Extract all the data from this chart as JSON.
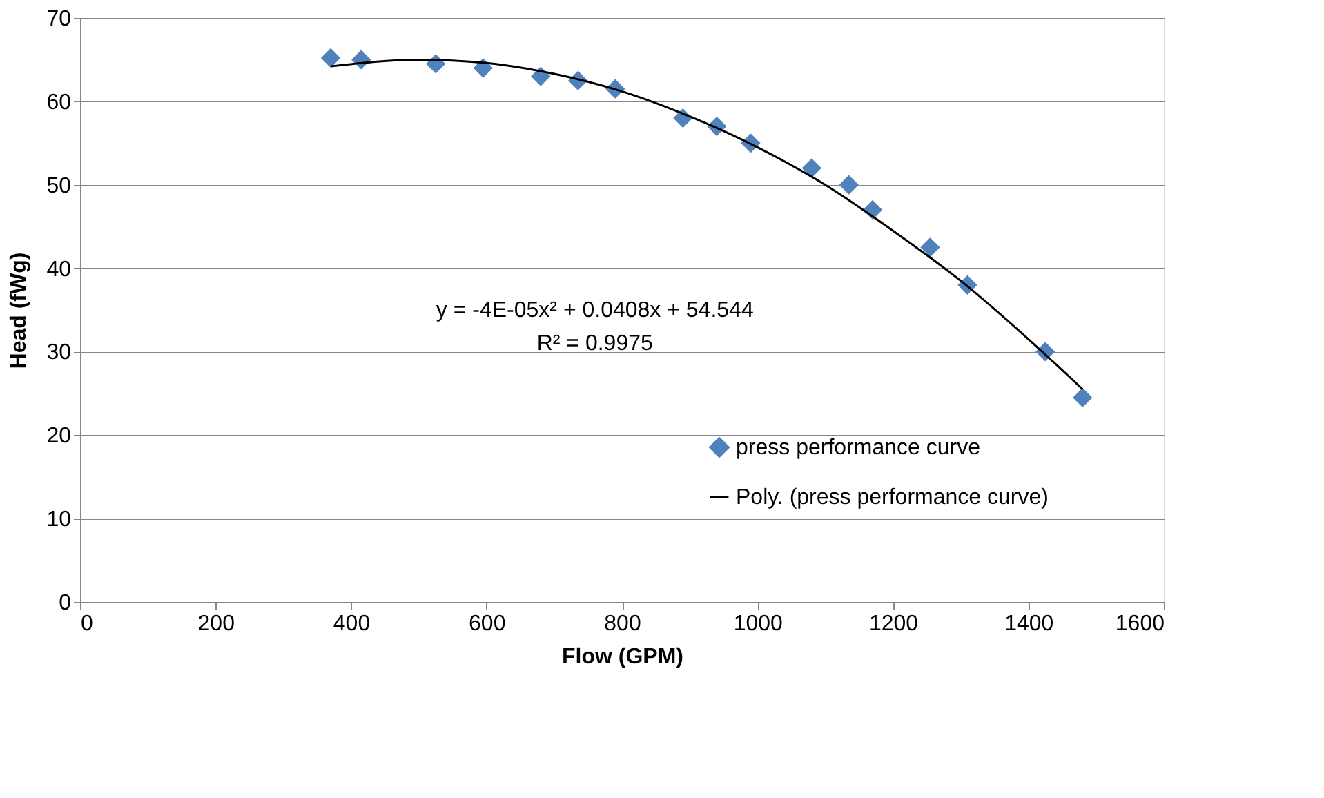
{
  "chart_data": {
    "type": "scatter",
    "xlabel": "Flow (GPM)",
    "ylabel": "Head (fWg)",
    "series": [
      {
        "name": "press performance curve",
        "color": "#4f81bd",
        "marker": "diamond",
        "x": [
          370,
          415,
          525,
          595,
          680,
          735,
          790,
          890,
          940,
          990,
          1080,
          1135,
          1170,
          1255,
          1310,
          1425,
          1480
        ],
        "values": [
          65.2,
          65,
          64.5,
          64,
          63,
          62.5,
          61.5,
          58,
          57,
          55,
          52,
          50,
          47,
          42.5,
          38,
          30,
          24.5
        ]
      },
      {
        "name": "Poly. (press performance curve)",
        "type": "line",
        "color": "#000000",
        "marker": "none",
        "x": [
          370,
          500,
          600,
          700,
          800,
          900,
          1000,
          1100,
          1200,
          1300,
          1400,
          1480
        ],
        "values": [
          64.2,
          65,
          64.6,
          63.3,
          61.2,
          58.2,
          54.5,
          50,
          44.5,
          38.5,
          31.5,
          25.5
        ]
      }
    ],
    "annotations": [
      "y = -4E-05x² + 0.0408x + 54.544",
      "R² = 0.9975"
    ],
    "xlim": [
      0,
      1600
    ],
    "xticks": [
      0,
      200,
      400,
      600,
      800,
      1000,
      1200,
      1400,
      1600
    ],
    "ylim": [
      0,
      70
    ],
    "yticks": [
      0,
      10,
      20,
      30,
      40,
      50,
      60,
      70
    ],
    "grid": "y",
    "legend": "bottom right"
  }
}
